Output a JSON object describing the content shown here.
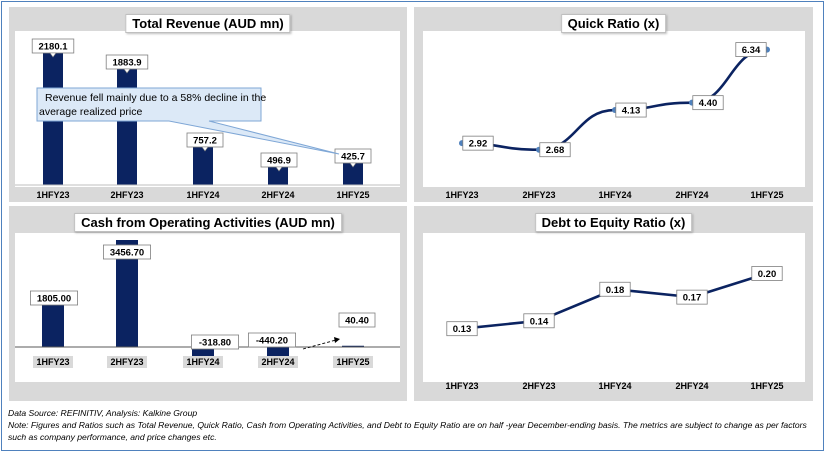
{
  "colors": {
    "bar": "#0b2361",
    "line": "#0b2361",
    "panel_bg": "#d9d9d9",
    "callout_bg": "#dce9f7",
    "callout_border": "#7fa7d6"
  },
  "chart_data": [
    {
      "type": "bar",
      "title": "Total Revenue (AUD mn)",
      "categories": [
        "1HFY23",
        "2HFY23",
        "1HFY24",
        "2HFY24",
        "1HFY25"
      ],
      "values": [
        2180.1,
        1883.9,
        757.2,
        496.9,
        425.7
      ],
      "value_labels": [
        "2180.1",
        "1883.9",
        "757.2",
        "496.9",
        "425.7"
      ],
      "ylim": [
        0,
        2300
      ],
      "annotation": "Revenue fell mainly due to a 58% decline in the average realized price"
    },
    {
      "type": "line",
      "title": "Quick Ratio (x)",
      "categories": [
        "1HFY23",
        "2HFY23",
        "1HFY24",
        "2HFY24",
        "1HFY25"
      ],
      "values": [
        2.92,
        2.68,
        4.13,
        4.4,
        6.34
      ],
      "value_labels": [
        "2.92",
        "2.68",
        "4.13",
        "4.40",
        "6.34"
      ],
      "ylim": [
        1.5,
        6.8
      ]
    },
    {
      "type": "bar",
      "title": "Cash from Operating Activities (AUD mn)",
      "categories": [
        "1HFY23",
        "2HFY23",
        "1HFY24",
        "2HFY24",
        "1HFY25"
      ],
      "values": [
        1805.0,
        3456.7,
        -318.8,
        -440.2,
        40.4
      ],
      "value_labels": [
        "1805.00",
        "3456.70",
        "-318.80",
        "-440.20",
        "40.40"
      ],
      "ylim": [
        -500,
        3600
      ]
    },
    {
      "type": "line",
      "title": "Debt to Equity Ratio (x)",
      "categories": [
        "1HFY23",
        "2HFY23",
        "1HFY24",
        "2HFY24",
        "1HFY25"
      ],
      "values": [
        0.13,
        0.14,
        0.18,
        0.17,
        0.2
      ],
      "value_labels": [
        "0.13",
        "0.14",
        "0.18",
        "0.17",
        "0.20"
      ],
      "ylim": [
        0.07,
        0.245
      ]
    }
  ],
  "footer": {
    "source": "Data Source: REFINITIV, Analysis: Kalkine Group",
    "note": "Note: Figures and Ratios such as Total Revenue, Quick Ratio, Cash from Operating Activities, and Debt to Equity Ratio are on half -year December-ending basis. The metrics are subject to change as per factors such as company performance, and price changes etc."
  }
}
